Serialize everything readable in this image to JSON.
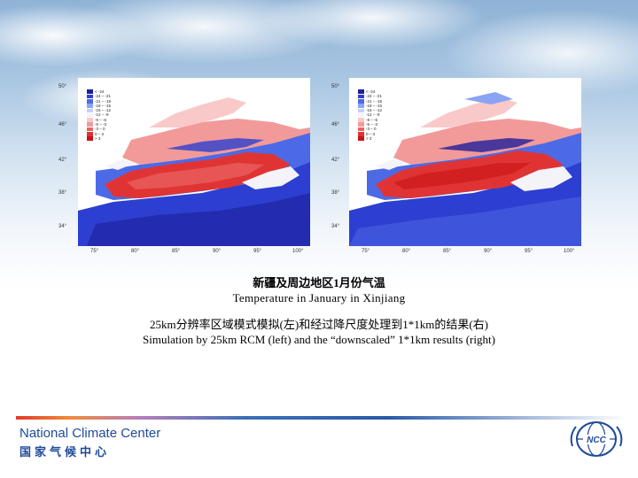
{
  "caption": {
    "title_zh": "新疆及周边地区1月份气温",
    "title_en": "Temperature in January in Xinjiang",
    "desc_zh": "25km分辨率区域模式模拟(左)和经过降尺度处理到1*1km的结果(右)",
    "desc_en": "Simulation by 25km RCM (left) and the “downscaled” 1*1km results  (right)"
  },
  "maps": {
    "left": {
      "lat_labels": [
        "50°",
        "46°",
        "42°",
        "38°",
        "34°"
      ],
      "lon_labels": [
        "75°",
        "80°",
        "85°",
        "90°",
        "95°",
        "100°"
      ],
      "legend": [
        "< -24",
        "-24 – -21",
        "-21 – -18",
        "-18 – -15",
        "-15 – -12",
        "-12 – -9",
        "-9 – -6",
        "-6 – -3",
        "-3 – 0",
        "0 – 3",
        "> 3"
      ]
    },
    "right": {
      "lat_labels": [
        "50°",
        "46°",
        "42°",
        "38°",
        "34°"
      ],
      "lon_labels": [
        "75°",
        "80°",
        "85°",
        "90°",
        "95°",
        "100°"
      ],
      "legend": [
        "< -24",
        "-24 – -21",
        "-21 – -18",
        "-18 – -15",
        "-15 – -12",
        "-12 – -9",
        "-9 – -6",
        "-6 – -3",
        "-3 – 0",
        "0 – 3",
        "> 3"
      ]
    }
  },
  "legend_colors": [
    "#1e1e9a",
    "#2c3fd0",
    "#4d6ae6",
    "#8aa3f2",
    "#c3d0f8",
    "#f3f3f8",
    "#f9c9c9",
    "#f29a9a",
    "#ea6464",
    "#e03434",
    "#c81414"
  ],
  "footer": {
    "org_en": "National Climate Center",
    "org_zh": "国家气候中心",
    "logo_text": "NCC"
  },
  "colors": {
    "brand_blue": "#1f4a9a",
    "warm_red": "#e03434",
    "cold_blue": "#2c3fd0"
  }
}
